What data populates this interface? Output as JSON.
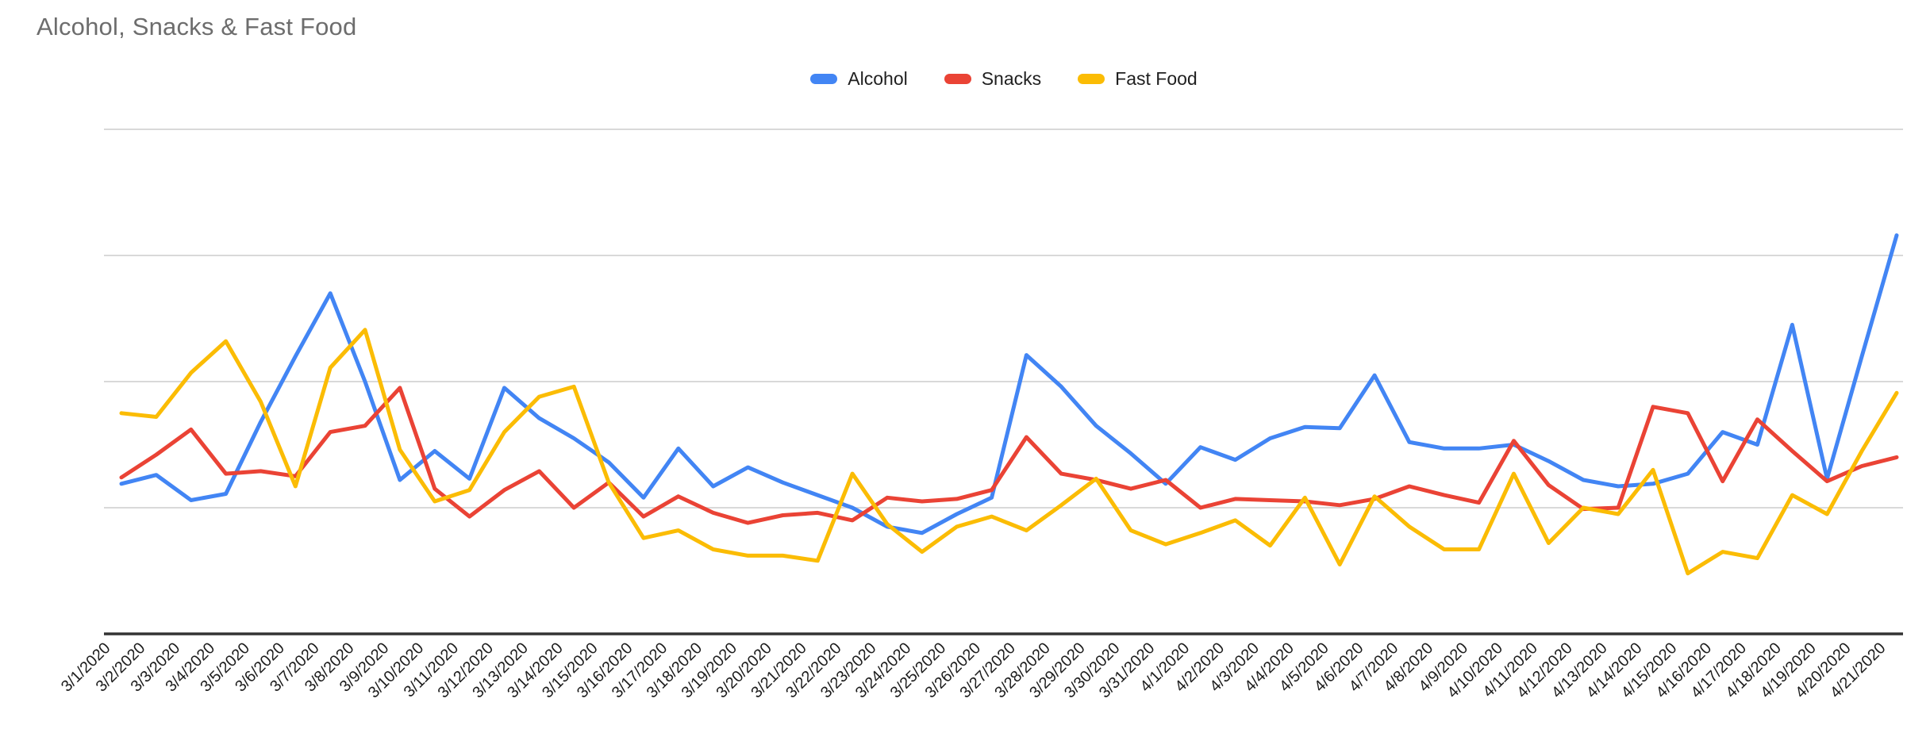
{
  "header": {
    "title": "Alcohol, Snacks & Fast Food",
    "title_color": "#6d6d6d"
  },
  "legend": {
    "position": "top-center",
    "items": [
      {
        "label": "Alcohol",
        "color": "#4285F4"
      },
      {
        "label": "Snacks",
        "color": "#EA4335"
      },
      {
        "label": "Fast Food",
        "color": "#FBBC04"
      }
    ]
  },
  "chart_data": {
    "type": "line",
    "title": "Alcohol, Snacks & Fast Food",
    "legend_position": "top-center",
    "grid": {
      "horizontal": true,
      "gridline_color": "#d9d9d9",
      "baseline_color": "#333333"
    },
    "x_axis": {
      "label_rotation_deg": -45,
      "tick_labels": [
        "3/1/2020",
        "3/2/2020",
        "3/3/2020",
        "3/4/2020",
        "3/5/2020",
        "3/6/2020",
        "3/7/2020",
        "3/8/2020",
        "3/9/2020",
        "3/10/2020",
        "3/11/2020",
        "3/12/2020",
        "3/13/2020",
        "3/14/2020",
        "3/15/2020",
        "3/16/2020",
        "3/17/2020",
        "3/18/2020",
        "3/19/2020",
        "3/20/2020",
        "3/21/2020",
        "3/22/2020",
        "3/23/2020",
        "3/24/2020",
        "3/25/2020",
        "3/26/2020",
        "3/27/2020",
        "3/28/2020",
        "3/29/2020",
        "3/30/2020",
        "3/31/2020",
        "4/1/2020",
        "4/2/2020",
        "4/3/2020",
        "4/4/2020",
        "4/5/2020",
        "4/6/2020",
        "4/7/2020",
        "4/8/2020",
        "4/9/2020",
        "4/10/2020",
        "4/11/2020",
        "4/12/2020",
        "4/13/2020",
        "4/14/2020",
        "4/15/2020",
        "4/16/2020",
        "4/17/2020",
        "4/18/2020",
        "4/19/2020",
        "4/20/2020",
        "4/21/2020"
      ]
    },
    "y_axis": {
      "tick_labels_visible": false,
      "note": "No numeric y-axis labels are shown in the chart; values are normalized so that one gridline interval = 1.0 and the x-axis baseline = 0.",
      "range": [
        0,
        4.4
      ],
      "gridline_values": [
        1,
        2,
        3,
        4
      ]
    },
    "series": [
      {
        "name": "Alcohol",
        "color": "#4285F4",
        "values": [
          1.19,
          1.26,
          1.06,
          1.11,
          1.68,
          2.2,
          2.7,
          2.0,
          1.22,
          1.45,
          1.23,
          1.95,
          1.71,
          1.55,
          1.36,
          1.08,
          1.47,
          1.17,
          1.32,
          1.2,
          1.1,
          1.0,
          0.85,
          0.8,
          0.95,
          1.08,
          2.21,
          1.96,
          1.65,
          1.43,
          1.19,
          1.48,
          1.38,
          1.55,
          1.64,
          1.63,
          2.05,
          1.52,
          1.47,
          1.47,
          1.5,
          1.37,
          1.22,
          1.17,
          1.19,
          1.27,
          1.6,
          1.5,
          2.45,
          1.23,
          2.2,
          3.16
        ]
      },
      {
        "name": "Snacks",
        "color": "#EA4335",
        "values": [
          1.24,
          1.42,
          1.62,
          1.27,
          1.29,
          1.25,
          1.6,
          1.65,
          1.95,
          1.15,
          0.93,
          1.14,
          1.29,
          1.0,
          1.2,
          0.93,
          1.09,
          0.96,
          0.88,
          0.94,
          0.96,
          0.9,
          1.08,
          1.05,
          1.07,
          1.14,
          1.56,
          1.27,
          1.22,
          1.15,
          1.22,
          1.0,
          1.07,
          1.06,
          1.05,
          1.02,
          1.07,
          1.17,
          1.1,
          1.04,
          1.53,
          1.18,
          0.99,
          1.0,
          1.8,
          1.75,
          1.21,
          1.7,
          1.45,
          1.21,
          1.33,
          1.4
        ]
      },
      {
        "name": "Fast Food",
        "color": "#FBBC04",
        "values": [
          1.75,
          1.72,
          2.07,
          2.32,
          1.84,
          1.17,
          2.11,
          2.41,
          1.46,
          1.05,
          1.14,
          1.6,
          1.88,
          1.96,
          1.2,
          0.76,
          0.82,
          0.67,
          0.62,
          0.62,
          0.58,
          1.27,
          0.87,
          0.65,
          0.85,
          0.93,
          0.82,
          1.02,
          1.23,
          0.82,
          0.71,
          0.8,
          0.9,
          0.7,
          1.08,
          0.55,
          1.09,
          0.85,
          0.67,
          0.67,
          1.27,
          0.72,
          1.0,
          0.95,
          1.3,
          0.48,
          0.65,
          0.6,
          1.1,
          0.95,
          1.45,
          1.91
        ]
      }
    ]
  }
}
